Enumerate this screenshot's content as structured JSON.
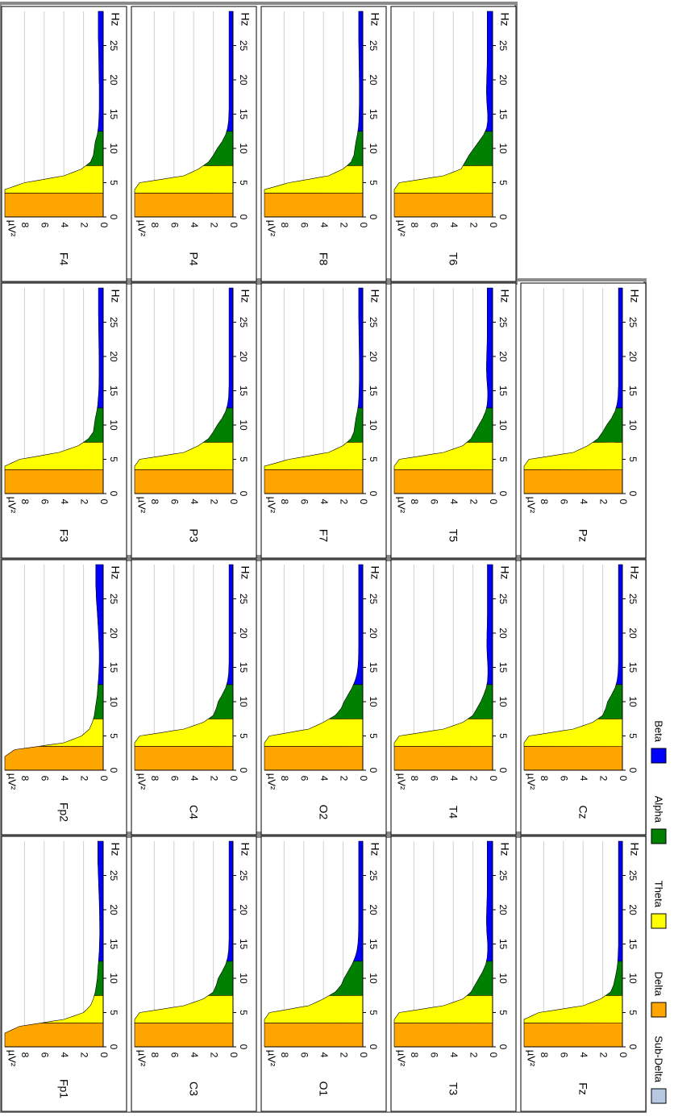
{
  "legend": {
    "items": [
      {
        "label": "Sub-Delta",
        "color": "#b7c9e2"
      },
      {
        "label": "Delta",
        "color": "#ffa500"
      },
      {
        "label": "Theta",
        "color": "#ffff00"
      },
      {
        "label": "Alpha",
        "color": "#008000"
      },
      {
        "label": "Beta",
        "color": "#0000ff"
      }
    ]
  },
  "chart_data": {
    "type": "area",
    "description_units": {
      "x": "Hz",
      "y": "µV²"
    },
    "xlabel": "Hz",
    "ylabel": "µV²",
    "xlim": [
      0,
      30
    ],
    "ylim": [
      0,
      10
    ],
    "x_ticks": [
      0,
      5,
      10,
      15,
      20,
      25
    ],
    "y_ticks": [
      0,
      2,
      4,
      6,
      8
    ],
    "grid": true,
    "orientation": "rotated 90 degrees clockwise",
    "bands": [
      {
        "name": "Delta",
        "from": 0,
        "to": 3.5,
        "color": "#ffa500"
      },
      {
        "name": "Theta",
        "from": 3.5,
        "to": 7.5,
        "color": "#ffff00"
      },
      {
        "name": "Alpha",
        "from": 7.5,
        "to": 12.5,
        "color": "#008000"
      },
      {
        "name": "Beta",
        "from": 12.5,
        "to": 30,
        "color": "#0000ff"
      }
    ],
    "x": [
      0,
      1,
      2,
      3,
      4,
      5,
      6,
      7,
      8,
      9,
      10,
      11,
      12,
      13,
      14,
      15,
      16,
      17,
      18,
      19,
      20,
      21,
      22,
      23,
      24,
      25,
      26,
      27,
      28,
      29,
      30
    ],
    "channels": [
      {
        "name": "Fp1",
        "values": [
          10,
          10,
          10,
          8.5,
          4.0,
          2.0,
          1.3,
          1.0,
          0.8,
          0.7,
          0.6,
          0.55,
          0.5,
          0.45,
          0.4,
          0.38,
          0.36,
          0.35,
          0.36,
          0.37,
          0.38,
          0.4,
          0.42,
          0.45,
          0.47,
          0.5,
          0.52,
          0.55,
          0.55,
          0.55,
          0.55
        ]
      },
      {
        "name": "Fp2",
        "values": [
          10,
          10,
          10,
          9.0,
          4.0,
          2.2,
          1.4,
          1.1,
          0.9,
          0.8,
          0.7,
          0.6,
          0.55,
          0.5,
          0.45,
          0.42,
          0.4,
          0.4,
          0.42,
          0.45,
          0.48,
          0.52,
          0.56,
          0.6,
          0.65,
          0.7,
          0.72,
          0.75,
          0.75,
          0.75,
          0.75
        ]
      },
      {
        "name": "F3",
        "values": [
          10,
          10,
          10,
          10,
          10,
          8.5,
          4.5,
          2.5,
          1.5,
          1.0,
          0.9,
          0.8,
          0.65,
          0.55,
          0.5,
          0.45,
          0.43,
          0.42,
          0.42,
          0.42,
          0.42,
          0.43,
          0.44,
          0.45,
          0.46,
          0.47,
          0.48,
          0.48,
          0.48,
          0.48,
          0.48
        ]
      },
      {
        "name": "F4",
        "values": [
          10,
          10,
          10,
          10,
          10,
          8.0,
          4.0,
          2.2,
          1.3,
          1.0,
          0.9,
          0.8,
          0.6,
          0.5,
          0.45,
          0.42,
          0.4,
          0.4,
          0.4,
          0.4,
          0.42,
          0.43,
          0.44,
          0.45,
          0.46,
          0.48,
          0.5,
          0.5,
          0.5,
          0.5,
          0.5
        ]
      },
      {
        "name": "C3",
        "values": [
          10,
          10,
          10,
          10,
          10,
          9.5,
          5.0,
          3.0,
          2.0,
          1.7,
          1.5,
          1.1,
          0.75,
          0.55,
          0.45,
          0.42,
          0.4,
          0.4,
          0.4,
          0.4,
          0.4,
          0.4,
          0.4,
          0.4,
          0.4,
          0.4,
          0.4,
          0.4,
          0.4,
          0.4,
          0.4
        ]
      },
      {
        "name": "C4",
        "values": [
          10,
          10,
          10,
          10,
          10,
          9.5,
          5.0,
          3.0,
          2.0,
          1.7,
          1.5,
          1.1,
          0.75,
          0.55,
          0.45,
          0.42,
          0.4,
          0.4,
          0.4,
          0.4,
          0.4,
          0.4,
          0.4,
          0.4,
          0.4,
          0.4,
          0.4,
          0.4,
          0.4,
          0.4,
          0.4
        ]
      },
      {
        "name": "P3",
        "values": [
          10,
          10,
          10,
          10,
          10,
          9.5,
          5.0,
          3.5,
          2.5,
          2.0,
          1.6,
          1.1,
          0.75,
          0.55,
          0.45,
          0.42,
          0.4,
          0.4,
          0.4,
          0.4,
          0.4,
          0.4,
          0.4,
          0.4,
          0.4,
          0.4,
          0.4,
          0.4,
          0.4,
          0.4,
          0.4
        ]
      },
      {
        "name": "P4",
        "values": [
          10,
          10,
          10,
          10,
          10,
          9.5,
          5.0,
          3.5,
          2.5,
          2.0,
          1.6,
          1.1,
          0.75,
          0.55,
          0.45,
          0.42,
          0.4,
          0.4,
          0.4,
          0.4,
          0.4,
          0.4,
          0.4,
          0.4,
          0.4,
          0.4,
          0.4,
          0.4,
          0.4,
          0.4,
          0.4
        ]
      },
      {
        "name": "O1",
        "values": [
          10,
          10,
          10,
          10,
          10,
          9.5,
          5.5,
          4.0,
          2.8,
          2.2,
          1.9,
          1.5,
          1.1,
          0.8,
          0.6,
          0.5,
          0.45,
          0.43,
          0.42,
          0.42,
          0.42,
          0.42,
          0.42,
          0.42,
          0.42,
          0.42,
          0.42,
          0.42,
          0.42,
          0.42,
          0.42
        ]
      },
      {
        "name": "O2",
        "values": [
          10,
          10,
          10,
          10,
          10,
          9.5,
          5.5,
          4.0,
          2.8,
          2.2,
          1.9,
          1.5,
          1.1,
          0.8,
          0.6,
          0.5,
          0.45,
          0.43,
          0.42,
          0.42,
          0.42,
          0.42,
          0.42,
          0.42,
          0.42,
          0.42,
          0.42,
          0.42,
          0.42,
          0.42,
          0.42
        ]
      },
      {
        "name": "F7",
        "values": [
          10,
          10,
          10,
          10,
          10,
          7.5,
          3.5,
          2.0,
          1.2,
          0.9,
          0.8,
          0.7,
          0.55,
          0.45,
          0.4,
          0.38,
          0.36,
          0.35,
          0.35,
          0.35,
          0.36,
          0.37,
          0.38,
          0.39,
          0.4,
          0.41,
          0.42,
          0.42,
          0.42,
          0.42,
          0.42
        ]
      },
      {
        "name": "F8",
        "values": [
          10,
          10,
          10,
          10,
          10,
          7.5,
          3.5,
          2.0,
          1.2,
          0.9,
          0.8,
          0.7,
          0.55,
          0.45,
          0.4,
          0.38,
          0.36,
          0.35,
          0.35,
          0.35,
          0.36,
          0.37,
          0.38,
          0.39,
          0.4,
          0.41,
          0.42,
          0.42,
          0.42,
          0.42,
          0.42
        ]
      },
      {
        "name": "T3",
        "values": [
          10,
          10,
          10,
          10,
          10,
          9.5,
          5.0,
          3.0,
          2.2,
          1.8,
          1.4,
          1.0,
          0.7,
          0.55,
          0.5,
          0.5,
          0.55,
          0.6,
          0.62,
          0.62,
          0.6,
          0.58,
          0.56,
          0.55,
          0.55,
          0.55,
          0.55,
          0.55,
          0.55,
          0.55,
          0.55
        ]
      },
      {
        "name": "T4",
        "values": [
          10,
          10,
          10,
          10,
          10,
          9.5,
          5.0,
          3.0,
          2.0,
          1.6,
          1.2,
          0.9,
          0.65,
          0.52,
          0.48,
          0.48,
          0.52,
          0.56,
          0.58,
          0.58,
          0.57,
          0.55,
          0.54,
          0.53,
          0.53,
          0.53,
          0.53,
          0.53,
          0.53,
          0.53,
          0.53
        ]
      },
      {
        "name": "T5",
        "values": [
          10,
          10,
          10,
          10,
          10,
          9.5,
          5.0,
          3.0,
          2.2,
          1.8,
          1.4,
          1.0,
          0.7,
          0.55,
          0.5,
          0.5,
          0.55,
          0.6,
          0.62,
          0.62,
          0.6,
          0.58,
          0.56,
          0.55,
          0.55,
          0.55,
          0.55,
          0.55,
          0.55,
          0.55,
          0.55
        ]
      },
      {
        "name": "T6",
        "values": [
          10,
          10,
          10,
          10,
          10,
          9.5,
          5.0,
          3.2,
          2.8,
          2.4,
          1.9,
          1.4,
          0.9,
          0.6,
          0.5,
          0.5,
          0.55,
          0.6,
          0.62,
          0.62,
          0.6,
          0.58,
          0.56,
          0.55,
          0.55,
          0.55,
          0.55,
          0.55,
          0.55,
          0.55,
          0.55
        ]
      },
      {
        "name": "Fz",
        "values": [
          10,
          10,
          10,
          10,
          10,
          8.5,
          4.0,
          2.2,
          1.2,
          0.9,
          0.75,
          0.6,
          0.5,
          0.45,
          0.42,
          0.4,
          0.4,
          0.4,
          0.4,
          0.4,
          0.4,
          0.4,
          0.4,
          0.4,
          0.4,
          0.4,
          0.4,
          0.4,
          0.4,
          0.4,
          0.4
        ]
      },
      {
        "name": "Cz",
        "values": [
          10,
          10,
          10,
          10,
          10,
          9.5,
          5.0,
          3.0,
          2.0,
          1.7,
          1.5,
          1.1,
          0.75,
          0.55,
          0.45,
          0.42,
          0.4,
          0.4,
          0.4,
          0.4,
          0.4,
          0.4,
          0.4,
          0.4,
          0.4,
          0.4,
          0.4,
          0.4,
          0.4,
          0.4,
          0.4
        ]
      },
      {
        "name": "Pz",
        "values": [
          10,
          10,
          10,
          10,
          10,
          9.5,
          5.0,
          3.5,
          2.5,
          2.0,
          1.6,
          1.1,
          0.75,
          0.55,
          0.45,
          0.42,
          0.4,
          0.4,
          0.4,
          0.4,
          0.4,
          0.4,
          0.4,
          0.4,
          0.4,
          0.4,
          0.4,
          0.4,
          0.4,
          0.4,
          0.4
        ]
      }
    ]
  }
}
